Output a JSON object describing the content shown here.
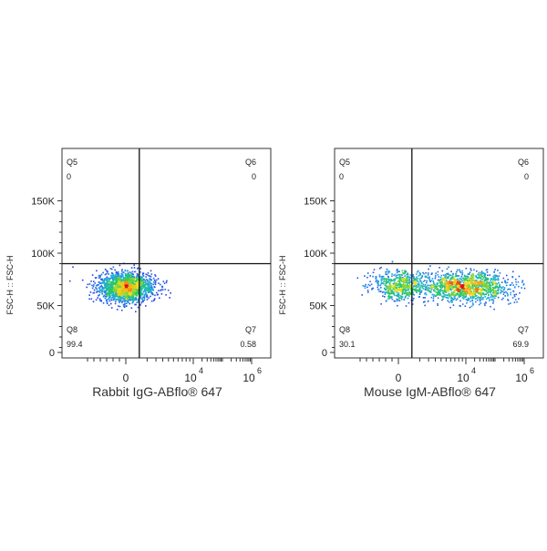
{
  "chart_data": [
    {
      "type": "scatter",
      "style": "flow-cytometry-density-dot-plot",
      "xlabel": "Rabbit IgG-ABflo® 647",
      "ylabel": "FSC-H :: FSC-H",
      "x_scale": "biexponential",
      "x_ticks": [
        {
          "label": "0",
          "value": 0
        },
        {
          "label": "10",
          "sup": "4",
          "value": 10000
        },
        {
          "label": "10",
          "sup": "6",
          "value": 1000000
        }
      ],
      "y_ticks": [
        "0",
        "50K",
        "100K",
        "150K"
      ],
      "ylim": [
        0,
        200000
      ],
      "gate": {
        "x": 400,
        "y": 90000
      },
      "quadrants": [
        {
          "name": "Q5",
          "value": "0",
          "position": "top-left"
        },
        {
          "name": "Q6",
          "value": "0",
          "position": "top-right"
        },
        {
          "name": "Q7",
          "value": "0.58",
          "position": "bottom-right"
        },
        {
          "name": "Q8",
          "value": "99.4",
          "position": "bottom-left"
        }
      ],
      "populations": [
        {
          "x_center": 0,
          "y_center": 68000,
          "fraction": 0.994
        }
      ]
    },
    {
      "type": "scatter",
      "style": "flow-cytometry-density-dot-plot",
      "xlabel": "Mouse IgM-ABflo® 647",
      "ylabel": "FSC-H :: FSC-H",
      "x_scale": "biexponential",
      "x_ticks": [
        {
          "label": "0",
          "value": 0
        },
        {
          "label": "10",
          "sup": "4",
          "value": 10000
        },
        {
          "label": "10",
          "sup": "6",
          "value": 1000000
        }
      ],
      "y_ticks": [
        "0",
        "50K",
        "100K",
        "150K"
      ],
      "ylim": [
        0,
        200000
      ],
      "gate": {
        "x": 400,
        "y": 90000
      },
      "quadrants": [
        {
          "name": "Q5",
          "value": "0",
          "position": "top-left"
        },
        {
          "name": "Q6",
          "value": "0",
          "position": "top-right"
        },
        {
          "name": "Q7",
          "value": "69.9",
          "position": "bottom-right"
        },
        {
          "name": "Q8",
          "value": "30.1",
          "position": "bottom-left"
        }
      ],
      "populations": [
        {
          "x_center": 0,
          "y_center": 70000,
          "fraction": 0.301
        },
        {
          "x_center": 10000,
          "y_center": 68000,
          "fraction": 0.699
        }
      ]
    }
  ]
}
